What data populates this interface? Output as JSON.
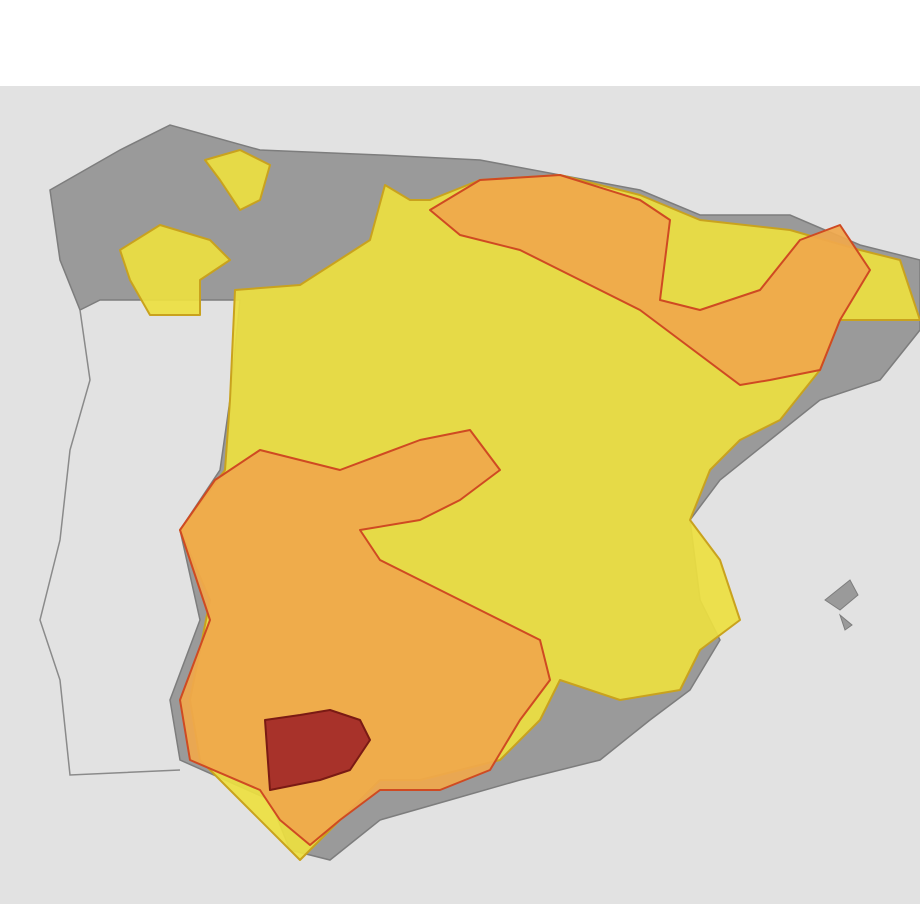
{
  "map": {
    "colors": [
      "#ede040",
      "#f0a84c",
      "#a8322a"
    ],
    "borders": [
      "#c9a21e",
      "#cf4a22",
      "#7a1a14"
    ]
  }
}
